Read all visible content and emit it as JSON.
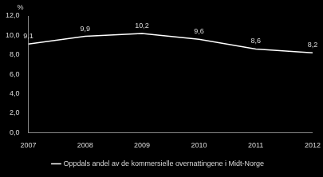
{
  "chart_data": {
    "type": "line",
    "ylabel": "%",
    "categories": [
      "2007",
      "2008",
      "2009",
      "2010",
      "2011",
      "2012"
    ],
    "series": [
      {
        "name": "Oppdals andel av de kommersielle overnattingene i Midt-Norge",
        "color": "#ffffff",
        "values": [
          9.1,
          9.9,
          10.2,
          9.6,
          8.6,
          8.2
        ],
        "value_labels": [
          "9,1",
          "9,9",
          "10,2",
          "9,6",
          "8,6",
          "8,2"
        ]
      }
    ],
    "ylim": [
      0,
      12
    ],
    "yticks": [
      {
        "value": 0,
        "label": "0,0"
      },
      {
        "value": 2,
        "label": "2,0"
      },
      {
        "value": 4,
        "label": "4,0"
      },
      {
        "value": 6,
        "label": "6,0"
      },
      {
        "value": 8,
        "label": "8,0"
      },
      {
        "value": 10,
        "label": "10,0"
      },
      {
        "value": 12,
        "label": "12,0"
      }
    ],
    "grid": false,
    "legend": "bottom",
    "data_labels": true
  }
}
